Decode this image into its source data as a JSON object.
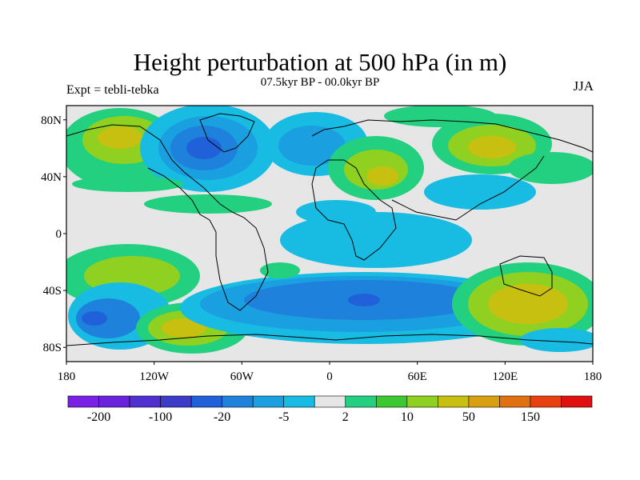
{
  "title": "Height perturbation at 500 hPa (in m)",
  "subtitle": "07.5kyr BP - 00.0kyr BP",
  "left_label": "Expt = tebli-tebka",
  "right_label": "JJA",
  "lat_ticks": [
    "80N",
    "40N",
    "0",
    "40S",
    "80S"
  ],
  "lon_ticks": [
    "180",
    "120W",
    "60W",
    "0",
    "60E",
    "120E",
    "180"
  ],
  "colorbar": {
    "colors": [
      "#7a1fe6",
      "#6a22dc",
      "#5030d0",
      "#3c3cc8",
      "#2060d8",
      "#1e82dc",
      "#1aa0e0",
      "#18bce2",
      "#e6e6e6",
      "#22d080",
      "#3cc830",
      "#90d020",
      "#c8c010",
      "#d8a010",
      "#e07010",
      "#e84010",
      "#e01010"
    ],
    "labels": [
      "-200",
      "-100",
      "-20",
      "-5",
      "2",
      "10",
      "50",
      "150"
    ]
  },
  "chart_data": {
    "type": "heatmap",
    "title": "Height perturbation at 500 hPa (in m)",
    "subtitle": "07.5kyr BP - 00.0kyr BP",
    "experiment": "Expt = tebli-tebka",
    "season": "JJA",
    "xlim": [
      -180,
      180
    ],
    "ylim": [
      -90,
      90
    ],
    "colorbar_levels": [
      -200,
      -100,
      -20,
      -5,
      2,
      10,
      50,
      150
    ],
    "anomalies": [
      {
        "lon": -150,
        "lat": 65,
        "value": 30
      },
      {
        "lon": -95,
        "lat": 55,
        "value": -40
      },
      {
        "lon": -20,
        "lat": 55,
        "value": -10
      },
      {
        "lon": 35,
        "lat": 50,
        "value": 15
      },
      {
        "lon": 120,
        "lat": 55,
        "value": 25
      },
      {
        "lon": 90,
        "lat": 10,
        "value": -8
      },
      {
        "lon": -150,
        "lat": -25,
        "value": 10
      },
      {
        "lon": -160,
        "lat": -60,
        "value": -20
      },
      {
        "lon": -110,
        "lat": -65,
        "value": 40
      },
      {
        "lon": 30,
        "lat": -45,
        "value": -20
      },
      {
        "lon": 120,
        "lat": -45,
        "value": 40
      },
      {
        "lon": -50,
        "lat": -20,
        "value": 10
      }
    ]
  }
}
